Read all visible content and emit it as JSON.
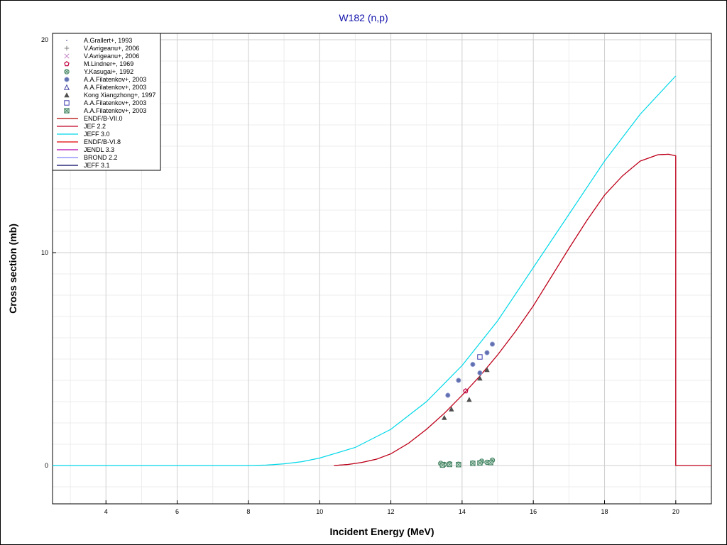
{
  "chart_data": {
    "type": "line",
    "title": "W182 (n,p)",
    "xlabel": "Incident Energy (MeV)",
    "ylabel": "Cross section (mb)",
    "xlim": [
      2.5,
      21
    ],
    "ylim": [
      -1.8,
      20.3
    ],
    "x_ticks": [
      4,
      6,
      8,
      10,
      12,
      14,
      16,
      18,
      20
    ],
    "y_ticks": [
      0,
      10,
      20
    ],
    "grid": true,
    "legend_position": "top-left",
    "curves": [
      {
        "name": "ENDF/B-VII.0",
        "color": "#b00000",
        "x": [
          10.4,
          10.8,
          11.2,
          11.6,
          12,
          12.5,
          13,
          13.5,
          14,
          14.5,
          15,
          15.5,
          16,
          16.5,
          17,
          17.5,
          18,
          18.5,
          19,
          19.5,
          19.8,
          20,
          20,
          21
        ],
        "y": [
          0,
          0.05,
          0.15,
          0.3,
          0.55,
          1.05,
          1.7,
          2.45,
          3.3,
          4.2,
          5.2,
          6.3,
          7.5,
          8.85,
          10.2,
          11.5,
          12.7,
          13.6,
          14.3,
          14.6,
          14.62,
          14.55,
          0,
          0
        ]
      },
      {
        "name": "JEF 2.2",
        "color": "#c00020",
        "x": [
          10.4,
          10.8,
          11.2,
          11.6,
          12,
          12.5,
          13,
          13.5,
          14,
          14.5,
          15,
          15.5,
          16,
          16.5,
          17,
          17.5,
          18,
          18.5,
          19,
          19.5,
          19.8,
          20,
          20,
          21
        ],
        "y": [
          0,
          0.05,
          0.15,
          0.3,
          0.55,
          1.05,
          1.7,
          2.45,
          3.3,
          4.2,
          5.2,
          6.3,
          7.5,
          8.85,
          10.2,
          11.5,
          12.7,
          13.6,
          14.3,
          14.6,
          14.62,
          14.55,
          0,
          0
        ]
      },
      {
        "name": "JEFF 3.0",
        "color": "#00d8e8",
        "x": [
          2.5,
          8,
          8.5,
          9,
          9.5,
          10,
          11,
          12,
          13,
          14,
          15,
          16,
          17,
          18,
          19,
          20
        ],
        "y": [
          0,
          0,
          0.02,
          0.08,
          0.18,
          0.35,
          0.85,
          1.7,
          3.0,
          4.7,
          6.8,
          9.3,
          11.8,
          14.3,
          16.5,
          18.3
        ]
      },
      {
        "name": "ENDF/B-VI.8",
        "color": "#e00000",
        "x": [],
        "y": []
      },
      {
        "name": "JENDL 3.3",
        "color": "#b000b0",
        "x": [],
        "y": []
      },
      {
        "name": "BROND 2.2",
        "color": "#8080ff",
        "x": [],
        "y": []
      },
      {
        "name": "JEFF 3.1",
        "color": "#000060",
        "x": [],
        "y": []
      }
    ],
    "scatter_series": [
      {
        "name": "A.Grallert+, 1993",
        "marker": "dot",
        "color": "#8080c0",
        "x": [],
        "y": []
      },
      {
        "name": "V.Avrigeanu+, 2006",
        "marker": "plus",
        "color": "#808080",
        "x": [],
        "y": []
      },
      {
        "name": "V.Avrigeanu+, 2006",
        "marker": "x",
        "color": "#c080c0",
        "x": [],
        "y": []
      },
      {
        "name": "M.Lindner+, 1969",
        "marker": "pentagon",
        "color": "#c00040",
        "x": [
          14.1
        ],
        "y": [
          3.5
        ]
      },
      {
        "name": "Y.Kasugai+, 1992",
        "marker": "circle-x",
        "color": "#408060",
        "x": [
          13.4,
          13.5,
          13.65,
          13.9,
          14.3,
          14.55,
          14.7,
          14.85
        ],
        "y": [
          0.1,
          0.05,
          0.08,
          0.06,
          0.12,
          0.2,
          0.15,
          0.25
        ]
      },
      {
        "name": "A.A.Filatenkov+, 2003",
        "marker": "filled-circle",
        "color": "#6070b0",
        "x": [
          13.6,
          13.9,
          14.3,
          14.5,
          14.7,
          14.85
        ],
        "y": [
          3.3,
          4.0,
          4.75,
          4.35,
          5.3,
          5.7
        ]
      },
      {
        "name": "A.A.Filatenkov+, 2003",
        "marker": "triangle",
        "color": "#4040a0",
        "x": [],
        "y": []
      },
      {
        "name": "Kong Xiangzhong+, 1997",
        "marker": "filled-triangle",
        "color": "#505050",
        "x": [
          13.5,
          13.7,
          14.2,
          14.5,
          14.7
        ],
        "y": [
          2.25,
          2.65,
          3.1,
          4.1,
          4.5
        ]
      },
      {
        "name": "A.A.Filatenkov+, 2003",
        "marker": "square",
        "color": "#4040b0",
        "x": [
          14.5
        ],
        "y": [
          5.1
        ]
      },
      {
        "name": "A.A.Filatenkov+, 2003",
        "marker": "square-x",
        "color": "#408060",
        "x": [
          13.45,
          13.65,
          13.9,
          14.3,
          14.5,
          14.8
        ],
        "y": [
          0.02,
          0.05,
          0.04,
          0.1,
          0.12,
          0.14
        ]
      }
    ]
  }
}
